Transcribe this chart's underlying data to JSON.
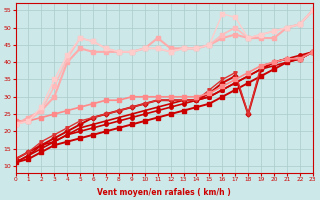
{
  "background_color": "#cce8e8",
  "grid_color": "#aacccc",
  "xlabel": "Vent moyen/en rafales ( km/h )",
  "xlim": [
    0,
    23
  ],
  "ylim": [
    8,
    57
  ],
  "yticks": [
    10,
    15,
    20,
    25,
    30,
    35,
    40,
    45,
    50,
    55
  ],
  "xticks": [
    0,
    1,
    2,
    3,
    4,
    5,
    6,
    7,
    8,
    9,
    10,
    11,
    12,
    13,
    14,
    15,
    16,
    17,
    18,
    19,
    20,
    21,
    22,
    23
  ],
  "series": [
    {
      "x": [
        0,
        1,
        2,
        3,
        4,
        5,
        6,
        7,
        8,
        9,
        10,
        11,
        12,
        13,
        14,
        15,
        16,
        17,
        18,
        19,
        20,
        21,
        22,
        23
      ],
      "y": [
        11,
        12,
        14,
        16,
        17,
        18,
        19,
        20,
        21,
        22,
        23,
        24,
        25,
        26,
        27,
        28,
        30,
        32,
        34,
        36,
        38,
        40,
        41,
        43
      ],
      "color": "#cc0000",
      "lw": 1.4,
      "marker": "s",
      "ms": 2.5
    },
    {
      "x": [
        0,
        1,
        2,
        3,
        4,
        5,
        6,
        7,
        8,
        9,
        10,
        11,
        12,
        13,
        14,
        15,
        16,
        17,
        18,
        19,
        20,
        21,
        22,
        23
      ],
      "y": [
        11,
        13,
        15,
        17,
        19,
        20,
        21,
        22,
        23,
        24,
        25,
        26,
        27,
        28,
        29,
        30,
        32,
        34,
        36,
        38,
        40,
        41,
        42,
        43
      ],
      "color": "#cc0000",
      "lw": 1.2,
      "marker": "o",
      "ms": 2.5
    },
    {
      "x": [
        0,
        1,
        2,
        3,
        4,
        5,
        6,
        7,
        8,
        9,
        10,
        11,
        12,
        13,
        14,
        15,
        16,
        17,
        18,
        19,
        20,
        21,
        22,
        23
      ],
      "y": [
        11,
        13,
        16,
        17,
        19,
        21,
        22,
        23,
        24,
        25,
        26,
        27,
        28,
        29,
        29,
        30,
        32,
        34,
        36,
        38,
        39,
        40,
        41,
        43
      ],
      "color": "#cc0000",
      "lw": 1.2,
      "marker": "^",
      "ms": 2.5
    },
    {
      "x": [
        0,
        1,
        2,
        3,
        4,
        5,
        6,
        7,
        8,
        9,
        10,
        11,
        12,
        13,
        14,
        15,
        16,
        17,
        18,
        19,
        20,
        21,
        22,
        23
      ],
      "y": [
        12,
        14,
        16,
        18,
        20,
        22,
        24,
        25,
        26,
        27,
        28,
        29,
        29,
        29,
        29,
        31,
        34,
        36,
        25,
        38,
        40,
        41,
        41,
        43
      ],
      "color": "#cc0000",
      "lw": 1.4,
      "marker": "D",
      "ms": 2.5
    },
    {
      "x": [
        0,
        1,
        2,
        3,
        4,
        5,
        6,
        7,
        8,
        9,
        10,
        11,
        12,
        13,
        14,
        15,
        16,
        17,
        18,
        19,
        20,
        21,
        22,
        23
      ],
      "y": [
        12,
        14,
        17,
        19,
        21,
        23,
        24,
        25,
        26,
        27,
        28,
        29,
        29,
        29,
        29,
        32,
        35,
        37,
        25,
        39,
        40,
        41,
        41,
        43
      ],
      "color": "#dd3333",
      "lw": 1.0,
      "marker": "v",
      "ms": 2.5
    },
    {
      "x": [
        0,
        1,
        2,
        3,
        4,
        5,
        6,
        7,
        8,
        9,
        10,
        11,
        12,
        13,
        14,
        15,
        16,
        17,
        18,
        19,
        20,
        21,
        22,
        23
      ],
      "y": [
        23,
        23,
        24,
        25,
        26,
        27,
        28,
        29,
        29,
        30,
        30,
        30,
        30,
        30,
        30,
        31,
        33,
        35,
        37,
        39,
        40,
        41,
        41,
        43
      ],
      "color": "#ff8888",
      "lw": 1.2,
      "marker": "s",
      "ms": 2.5
    },
    {
      "x": [
        0,
        1,
        2,
        3,
        4,
        5,
        6,
        7,
        8,
        9,
        10,
        11,
        12,
        13,
        14,
        15,
        16,
        17,
        18,
        19,
        20,
        21,
        22,
        23
      ],
      "y": [
        22,
        24,
        26,
        30,
        40,
        44,
        43,
        43,
        43,
        43,
        44,
        47,
        44,
        44,
        44,
        45,
        47,
        48,
        47,
        47,
        47,
        50,
        51,
        55
      ],
      "color": "#ffaaaa",
      "lw": 1.5,
      "marker": "s",
      "ms": 2.5
    },
    {
      "x": [
        0,
        1,
        2,
        3,
        4,
        5,
        6,
        7,
        8,
        9,
        10,
        11,
        12,
        13,
        14,
        15,
        16,
        17,
        18,
        19,
        20,
        21,
        22,
        23
      ],
      "y": [
        22,
        23,
        26,
        33,
        41,
        47,
        46,
        44,
        43,
        43,
        44,
        44,
        43,
        44,
        44,
        45,
        48,
        50,
        47,
        48,
        49,
        50,
        51,
        55
      ],
      "color": "#ffbbbb",
      "lw": 1.2,
      "marker": "s",
      "ms": 2.5
    },
    {
      "x": [
        0,
        1,
        2,
        3,
        4,
        5,
        6,
        7,
        8,
        9,
        10,
        11,
        12,
        13,
        14,
        15,
        16,
        17,
        18,
        19,
        20,
        21,
        22,
        23
      ],
      "y": [
        22,
        23,
        27,
        35,
        42,
        47,
        46,
        44,
        43,
        43,
        44,
        44,
        43,
        44,
        44,
        45,
        54,
        53,
        47,
        48,
        49,
        50,
        51,
        55
      ],
      "color": "#ffcccc",
      "lw": 1.0,
      "marker": "s",
      "ms": 2.5
    }
  ]
}
